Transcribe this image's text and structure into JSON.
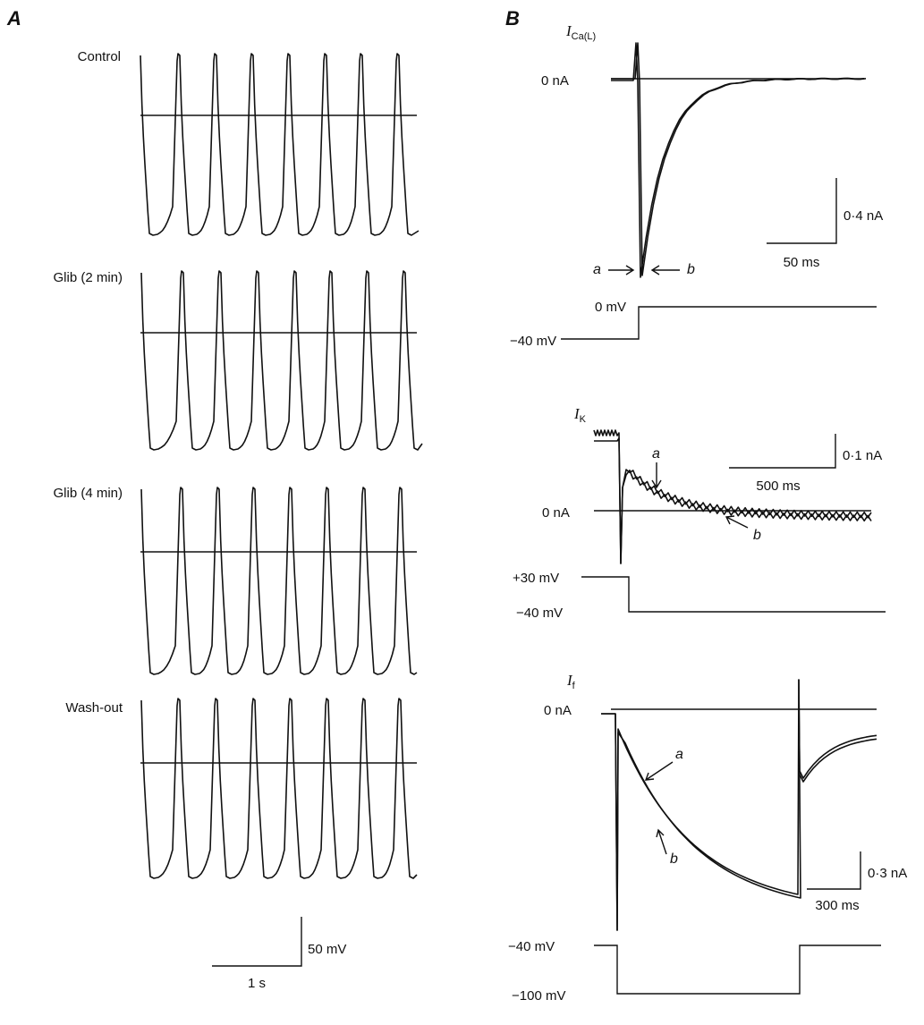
{
  "panel_labels": {
    "a": "A",
    "b": "B"
  },
  "panel_a": {
    "rows": [
      {
        "label": "Control"
      },
      {
        "label": "Glib (2 min)"
      },
      {
        "label": "Glib (4 min)"
      },
      {
        "label": "Wash-out"
      }
    ],
    "scale_bar": {
      "voltage": "50 mV",
      "time": "1 s"
    }
  },
  "panel_b": {
    "ica": {
      "label_main": "I",
      "label_sub": "Ca(L)",
      "zero_label": "0 nA",
      "arrow_a": "a",
      "arrow_b": "b",
      "scale_current": "0·4 nA",
      "scale_time": "50 ms",
      "v_hold": "−40 mV",
      "v_step": "0 mV"
    },
    "ik": {
      "label_main": "I",
      "label_sub": "K",
      "zero_label": "0 nA",
      "arrow_a": "a",
      "arrow_b": "b",
      "scale_current": "0·1 nA",
      "scale_time": "500 ms",
      "v_step": "+30 mV",
      "v_hold": "−40 mV"
    },
    "if": {
      "label_main": "I",
      "label_sub": "f",
      "zero_label": "0 nA",
      "arrow_a": "a",
      "arrow_b": "b",
      "scale_current": "0·3 nA",
      "scale_time": "300 ms",
      "v_hold": "−40 mV",
      "v_step": "−100 mV"
    }
  },
  "chart_data": [
    {
      "type": "line",
      "panel": "A",
      "description_units": {
        "x": "s",
        "y": "mV"
      },
      "series": [
        {
          "name": "Control",
          "beats": 8
        },
        {
          "name": "Glib (2 min)",
          "beats": 8
        },
        {
          "name": "Glib (4 min)",
          "beats": 8
        },
        {
          "name": "Wash-out",
          "beats": 8
        }
      ]
    },
    {
      "type": "line",
      "panel": "B",
      "traces": [
        "a",
        "b"
      ],
      "recordings": [
        "I Ca(L)",
        "I K",
        "I f"
      ]
    }
  ]
}
